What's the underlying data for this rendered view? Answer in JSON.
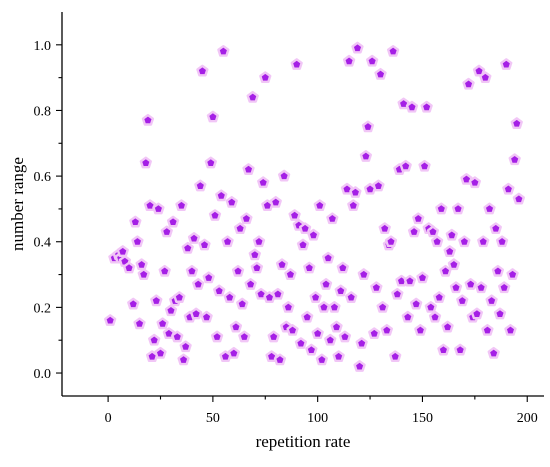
{
  "chart_data": {
    "type": "scatter",
    "xlabel": "repetition rate",
    "ylabel": "number range",
    "xlim": [
      -22,
      208
    ],
    "ylim": [
      -0.07,
      1.1
    ],
    "xticks": [
      0,
      50,
      100,
      150,
      200
    ],
    "yticks": [
      0.0,
      0.2,
      0.4,
      0.6,
      0.8,
      1.0
    ],
    "ytick_labels": [
      "0.0",
      "0.2",
      "0.4",
      "0.6",
      "0.8",
      "1.0"
    ],
    "grid": false,
    "legend": "none",
    "marker": "pentagon",
    "colors": {
      "marker_fill": "#a51fe6",
      "marker_halo": "#f1c6f6"
    },
    "points": [
      [
        1,
        0.16
      ],
      [
        3,
        0.35
      ],
      [
        5,
        0.36
      ],
      [
        6,
        0.35
      ],
      [
        7,
        0.37
      ],
      [
        8,
        0.34
      ],
      [
        10,
        0.32
      ],
      [
        12,
        0.21
      ],
      [
        13,
        0.46
      ],
      [
        14,
        0.4
      ],
      [
        15,
        0.15
      ],
      [
        16,
        0.33
      ],
      [
        17,
        0.3
      ],
      [
        18,
        0.64
      ],
      [
        19,
        0.77
      ],
      [
        20,
        0.51
      ],
      [
        21,
        0.05
      ],
      [
        22,
        0.1
      ],
      [
        23,
        0.22
      ],
      [
        24,
        0.5
      ],
      [
        25,
        0.06
      ],
      [
        26,
        0.15
      ],
      [
        27,
        0.31
      ],
      [
        28,
        0.43
      ],
      [
        29,
        0.12
      ],
      [
        30,
        0.19
      ],
      [
        31,
        0.46
      ],
      [
        32,
        0.22
      ],
      [
        33,
        0.11
      ],
      [
        34,
        0.23
      ],
      [
        35,
        0.51
      ],
      [
        36,
        0.04
      ],
      [
        37,
        0.08
      ],
      [
        38,
        0.38
      ],
      [
        39,
        0.17
      ],
      [
        40,
        0.31
      ],
      [
        41,
        0.41
      ],
      [
        42,
        0.18
      ],
      [
        43,
        0.27
      ],
      [
        44,
        0.57
      ],
      [
        45,
        0.92
      ],
      [
        46,
        0.39
      ],
      [
        47,
        0.17
      ],
      [
        48,
        0.29
      ],
      [
        49,
        0.64
      ],
      [
        50,
        0.78
      ],
      [
        51,
        0.48
      ],
      [
        52,
        0.11
      ],
      [
        53,
        0.25
      ],
      [
        54,
        0.54
      ],
      [
        55,
        0.98
      ],
      [
        56,
        0.05
      ],
      [
        57,
        0.4
      ],
      [
        58,
        0.23
      ],
      [
        59,
        0.52
      ],
      [
        60,
        0.06
      ],
      [
        61,
        0.14
      ],
      [
        62,
        0.31
      ],
      [
        63,
        0.44
      ],
      [
        64,
        0.21
      ],
      [
        65,
        0.11
      ],
      [
        66,
        0.47
      ],
      [
        67,
        0.62
      ],
      [
        68,
        0.27
      ],
      [
        69,
        0.84
      ],
      [
        70,
        0.36
      ],
      [
        71,
        0.32
      ],
      [
        72,
        0.4
      ],
      [
        73,
        0.24
      ],
      [
        74,
        0.58
      ],
      [
        75,
        0.9
      ],
      [
        76,
        0.51
      ],
      [
        77,
        0.23
      ],
      [
        78,
        0.05
      ],
      [
        79,
        0.11
      ],
      [
        80,
        0.52
      ],
      [
        81,
        0.24
      ],
      [
        82,
        0.04
      ],
      [
        83,
        0.33
      ],
      [
        84,
        0.6
      ],
      [
        85,
        0.14
      ],
      [
        86,
        0.2
      ],
      [
        87,
        0.3
      ],
      [
        88,
        0.13
      ],
      [
        89,
        0.48
      ],
      [
        90,
        0.94
      ],
      [
        91,
        0.45
      ],
      [
        92,
        0.09
      ],
      [
        93,
        0.39
      ],
      [
        94,
        0.44
      ],
      [
        95,
        0.17
      ],
      [
        96,
        0.32
      ],
      [
        97,
        0.07
      ],
      [
        98,
        0.42
      ],
      [
        99,
        0.23
      ],
      [
        100,
        0.12
      ],
      [
        101,
        0.51
      ],
      [
        102,
        0.04
      ],
      [
        103,
        0.2
      ],
      [
        104,
        0.27
      ],
      [
        105,
        0.35
      ],
      [
        106,
        0.1
      ],
      [
        107,
        0.47
      ],
      [
        108,
        0.2
      ],
      [
        109,
        0.14
      ],
      [
        110,
        0.05
      ],
      [
        111,
        0.25
      ],
      [
        112,
        0.32
      ],
      [
        113,
        0.11
      ],
      [
        114,
        0.56
      ],
      [
        115,
        0.95
      ],
      [
        116,
        0.23
      ],
      [
        117,
        0.51
      ],
      [
        118,
        0.55
      ],
      [
        119,
        0.99
      ],
      [
        120,
        0.02
      ],
      [
        121,
        0.09
      ],
      [
        122,
        0.3
      ],
      [
        123,
        0.66
      ],
      [
        124,
        0.75
      ],
      [
        125,
        0.56
      ],
      [
        126,
        0.95
      ],
      [
        127,
        0.12
      ],
      [
        128,
        0.26
      ],
      [
        129,
        0.57
      ],
      [
        130,
        0.91
      ],
      [
        131,
        0.2
      ],
      [
        132,
        0.44
      ],
      [
        133,
        0.13
      ],
      [
        134,
        0.39
      ],
      [
        135,
        0.4
      ],
      [
        136,
        0.98
      ],
      [
        137,
        0.05
      ],
      [
        138,
        0.24
      ],
      [
        139,
        0.62
      ],
      [
        140,
        0.28
      ],
      [
        141,
        0.82
      ],
      [
        142,
        0.63
      ],
      [
        143,
        0.17
      ],
      [
        144,
        0.28
      ],
      [
        145,
        0.81
      ],
      [
        146,
        0.43
      ],
      [
        147,
        0.21
      ],
      [
        148,
        0.47
      ],
      [
        149,
        0.13
      ],
      [
        150,
        0.29
      ],
      [
        151,
        0.63
      ],
      [
        152,
        0.81
      ],
      [
        153,
        0.44
      ],
      [
        154,
        0.2
      ],
      [
        155,
        0.43
      ],
      [
        156,
        0.17
      ],
      [
        157,
        0.4
      ],
      [
        158,
        0.23
      ],
      [
        159,
        0.5
      ],
      [
        160,
        0.07
      ],
      [
        161,
        0.31
      ],
      [
        162,
        0.14
      ],
      [
        163,
        0.37
      ],
      [
        164,
        0.42
      ],
      [
        165,
        0.33
      ],
      [
        166,
        0.26
      ],
      [
        167,
        0.5
      ],
      [
        168,
        0.07
      ],
      [
        169,
        0.22
      ],
      [
        170,
        0.4
      ],
      [
        171,
        0.59
      ],
      [
        172,
        0.88
      ],
      [
        173,
        0.27
      ],
      [
        174,
        0.17
      ],
      [
        175,
        0.58
      ],
      [
        176,
        0.18
      ],
      [
        177,
        0.92
      ],
      [
        178,
        0.26
      ],
      [
        179,
        0.4
      ],
      [
        180,
        0.9
      ],
      [
        181,
        0.13
      ],
      [
        182,
        0.5
      ],
      [
        183,
        0.22
      ],
      [
        184,
        0.06
      ],
      [
        185,
        0.44
      ],
      [
        186,
        0.31
      ],
      [
        187,
        0.18
      ],
      [
        188,
        0.4
      ],
      [
        189,
        0.26
      ],
      [
        190,
        0.94
      ],
      [
        191,
        0.56
      ],
      [
        192,
        0.13
      ],
      [
        193,
        0.3
      ],
      [
        194,
        0.65
      ],
      [
        195,
        0.76
      ],
      [
        196,
        0.53
      ]
    ]
  }
}
